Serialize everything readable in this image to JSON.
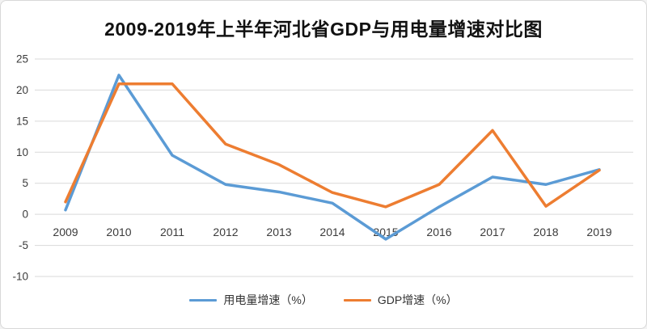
{
  "window": {
    "background": "#ffffff",
    "border_color": "#d8d8d8"
  },
  "chart_data": {
    "type": "line",
    "title": "2009-2019年上半年河北省GDP与用电量增速对比图",
    "xlabel": "",
    "ylabel": "",
    "categories": [
      "2009",
      "2010",
      "2011",
      "2012",
      "2013",
      "2014",
      "2015",
      "2016",
      "2017",
      "2018",
      "2019"
    ],
    "series": [
      {
        "name": "用电量增速（%）",
        "color": "#5B9BD5",
        "values": [
          0.7,
          22.4,
          9.5,
          4.8,
          3.6,
          1.8,
          -4.0,
          1.2,
          6.0,
          4.8,
          7.2
        ]
      },
      {
        "name": "GDP增速（%）",
        "color": "#ED7D31",
        "values": [
          2.0,
          21.0,
          21.0,
          11.3,
          8.0,
          3.5,
          1.2,
          4.8,
          13.5,
          1.3,
          7.1
        ]
      }
    ],
    "ylim": [
      -10,
      25
    ],
    "yticks": [
      25,
      20,
      15,
      10,
      5,
      0,
      -5,
      -10
    ],
    "grid": "horizontal",
    "gridline_color": "#d9d9d9",
    "axis_text_color": "#3b3b3b",
    "legend_position": "bottom",
    "line_width": 3.5
  }
}
